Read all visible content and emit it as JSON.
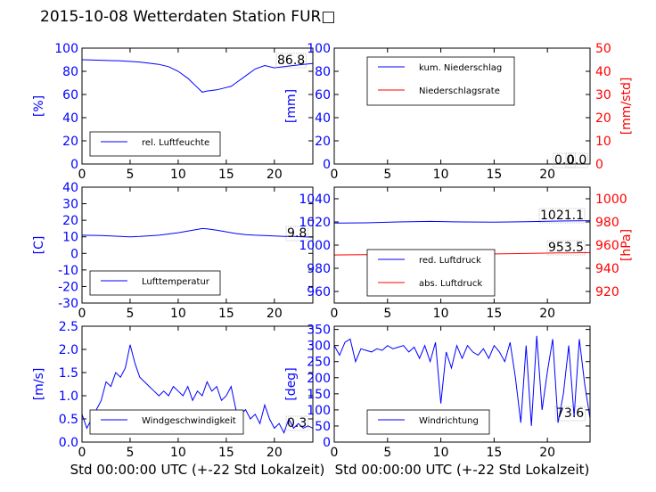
{
  "title": "2015-10-08 Wetterdaten Station FUR□",
  "xlabel": "Std 00:00:00 UTC (+-22 Std Lokalzeit)",
  "colors": {
    "blue": "#0000ff",
    "red": "#ff0000",
    "light_blue": "#8080ff",
    "black": "#000000"
  },
  "chart_data": [
    {
      "type": "line",
      "xlim": [
        0,
        24
      ],
      "xticks": [
        0,
        5,
        10,
        15,
        20
      ],
      "ylim": [
        0,
        100
      ],
      "yticks": [
        0,
        20,
        40,
        60,
        80,
        100
      ],
      "ylabel": "[%]",
      "axis_color": "blue",
      "legend": "bottom-left",
      "series": [
        {
          "name": "rel. Luftfeuchte",
          "color": "blue",
          "x": [
            0,
            2,
            4,
            6,
            8,
            9,
            10,
            11,
            11.5,
            12,
            12.5,
            13,
            14,
            15,
            15.5,
            16,
            17,
            18,
            19,
            20,
            21,
            22,
            23,
            24
          ],
          "y": [
            90,
            89.5,
            89,
            88,
            86,
            84,
            80,
            74,
            70,
            66,
            62,
            63,
            64,
            66,
            67,
            70,
            76,
            82,
            85,
            83,
            84,
            85,
            86,
            86.8
          ]
        }
      ],
      "annotations": [
        "86.8"
      ]
    },
    {
      "type": "line",
      "xlim": [
        0,
        24
      ],
      "xticks": [
        0,
        5,
        10,
        15,
        20
      ],
      "ylim": [
        0,
        100
      ],
      "yticks": [
        0,
        20,
        40,
        60,
        80,
        100
      ],
      "ylabel": "[mm]",
      "y2lim": [
        0,
        50
      ],
      "y2ticks": [
        0,
        10,
        20,
        30,
        40,
        50
      ],
      "y2label": "[mm/std]",
      "axis_color": "blue",
      "axis2_color": "red",
      "legend": "top-left",
      "series": [
        {
          "name": "kum. Niederschlag",
          "color": "blue",
          "axis": "y",
          "x": [
            0,
            24
          ],
          "y": [
            0,
            0
          ]
        },
        {
          "name": "Niederschlagsrate",
          "color": "red",
          "axis": "y2",
          "x": [
            0,
            24
          ],
          "y": [
            0,
            0
          ]
        }
      ],
      "annotations": [
        "0.0",
        "0.0"
      ]
    },
    {
      "type": "line",
      "xlim": [
        0,
        24
      ],
      "xticks": [
        0,
        5,
        10,
        15,
        20
      ],
      "ylim": [
        -30,
        40
      ],
      "yticks": [
        -30,
        -20,
        -10,
        0,
        10,
        20,
        30,
        40
      ],
      "ylabel": "[C]",
      "axis_color": "blue",
      "legend": "bottom-left",
      "series": [
        {
          "name": "Lufttemperatur",
          "color": "blue",
          "x": [
            0,
            2,
            4,
            5,
            6,
            8,
            10,
            11,
            12,
            12.5,
            13,
            14,
            15,
            16,
            17,
            18,
            19,
            20,
            21,
            22,
            23,
            24
          ],
          "y": [
            11,
            10.8,
            10.2,
            10,
            10.2,
            11,
            12.5,
            13.5,
            14.5,
            15,
            14.8,
            14,
            13,
            12,
            11.3,
            11,
            10.8,
            10.5,
            10.3,
            10.2,
            10,
            9.8
          ]
        }
      ],
      "annotations": [
        "9.8"
      ]
    },
    {
      "type": "line",
      "xlim": [
        0,
        24
      ],
      "xticks": [
        0,
        5,
        10,
        15,
        20
      ],
      "ylim": [
        950,
        1050
      ],
      "yticks": [
        960,
        980,
        1000,
        1020,
        1040
      ],
      "y2lim": [
        910,
        1010
      ],
      "y2ticks": [
        920,
        940,
        960,
        980,
        1000
      ],
      "y2label": "[hPa]",
      "axis_color": "blue",
      "axis2_color": "red",
      "legend": "bottom-left",
      "series": [
        {
          "name": "red. Luftdruck",
          "color": "blue",
          "axis": "y",
          "x": [
            0,
            3,
            6,
            9,
            12,
            15,
            18,
            21,
            24
          ],
          "y": [
            1019,
            1019.2,
            1020,
            1020.5,
            1020,
            1019.8,
            1020.2,
            1020.8,
            1021.1
          ]
        },
        {
          "name": "abs. Luftdruck",
          "color": "red",
          "axis": "y2",
          "x": [
            0,
            3,
            6,
            9,
            12,
            15,
            18,
            21,
            24
          ],
          "y": [
            951.5,
            951.8,
            952.3,
            952.7,
            952.5,
            952.4,
            952.8,
            953.2,
            953.5
          ]
        }
      ],
      "annotations": [
        "1021.1",
        "953.5"
      ]
    },
    {
      "type": "line",
      "xlim": [
        0,
        24
      ],
      "xticks": [
        0,
        5,
        10,
        15,
        20
      ],
      "ylim": [
        0,
        2.5
      ],
      "yticks": [
        0.0,
        0.5,
        1.0,
        1.5,
        2.0,
        2.5
      ],
      "ylabel": "[m/s]",
      "axis_color": "blue",
      "legend": "bottom-center",
      "series": [
        {
          "name": "Windgeschwindigkeit",
          "color": "blue",
          "x": [
            0,
            0.5,
            1,
            1.5,
            2,
            2.5,
            3,
            3.5,
            4,
            4.5,
            5,
            5.5,
            6,
            6.5,
            7,
            7.5,
            8,
            8.5,
            9,
            9.5,
            10,
            10.5,
            11,
            11.5,
            12,
            12.5,
            13,
            13.5,
            14,
            14.5,
            15,
            15.5,
            16,
            16.5,
            17,
            17.5,
            18,
            18.5,
            19,
            19.5,
            20,
            20.5,
            21,
            21.5,
            22,
            22.5,
            23,
            23.5,
            24
          ],
          "y": [
            0.6,
            0.3,
            0.5,
            0.7,
            0.9,
            1.3,
            1.2,
            1.5,
            1.4,
            1.6,
            2.1,
            1.7,
            1.4,
            1.3,
            1.2,
            1.1,
            1.0,
            1.1,
            1.0,
            1.2,
            1.1,
            1.0,
            1.2,
            0.9,
            1.1,
            1.0,
            1.3,
            1.1,
            1.2,
            0.9,
            1.0,
            1.2,
            0.7,
            0.6,
            0.7,
            0.5,
            0.6,
            0.4,
            0.8,
            0.5,
            0.3,
            0.4,
            0.2,
            0.5,
            0.3,
            0.4,
            0.3,
            0.35,
            0.3
          ]
        }
      ],
      "annotations": [
        "0.3"
      ]
    },
    {
      "type": "line",
      "xlim": [
        0,
        24
      ],
      "xticks": [
        0,
        5,
        10,
        15,
        20
      ],
      "ylim": [
        0,
        360
      ],
      "yticks": [
        0,
        50,
        100,
        150,
        200,
        250,
        300,
        350
      ],
      "ylabel": "[deg]",
      "axis_color": "blue",
      "legend": "bottom-left",
      "series": [
        {
          "name": "Windrichtung",
          "color": "blue",
          "x": [
            0,
            0.5,
            1,
            1.5,
            2,
            2.5,
            3,
            3.5,
            4,
            4.5,
            5,
            5.5,
            6,
            6.5,
            7,
            7.5,
            8,
            8.5,
            9,
            9.5,
            10,
            10.5,
            11,
            11.5,
            12,
            12.5,
            13,
            13.5,
            14,
            14.5,
            15,
            15.5,
            16,
            16.5,
            17,
            17.5,
            18,
            18.5,
            19,
            19.5,
            20,
            20.5,
            21,
            21.5,
            22,
            22.5,
            23,
            23.5,
            24
          ],
          "y": [
            300,
            270,
            310,
            320,
            250,
            290,
            285,
            280,
            290,
            285,
            300,
            290,
            295,
            300,
            280,
            295,
            260,
            300,
            250,
            310,
            120,
            280,
            230,
            300,
            260,
            300,
            280,
            270,
            290,
            260,
            300,
            280,
            250,
            310,
            200,
            60,
            300,
            50,
            330,
            100,
            220,
            320,
            60,
            150,
            300,
            80,
            320,
            180,
            73.6
          ]
        }
      ],
      "annotations": [
        "73.6"
      ]
    }
  ]
}
